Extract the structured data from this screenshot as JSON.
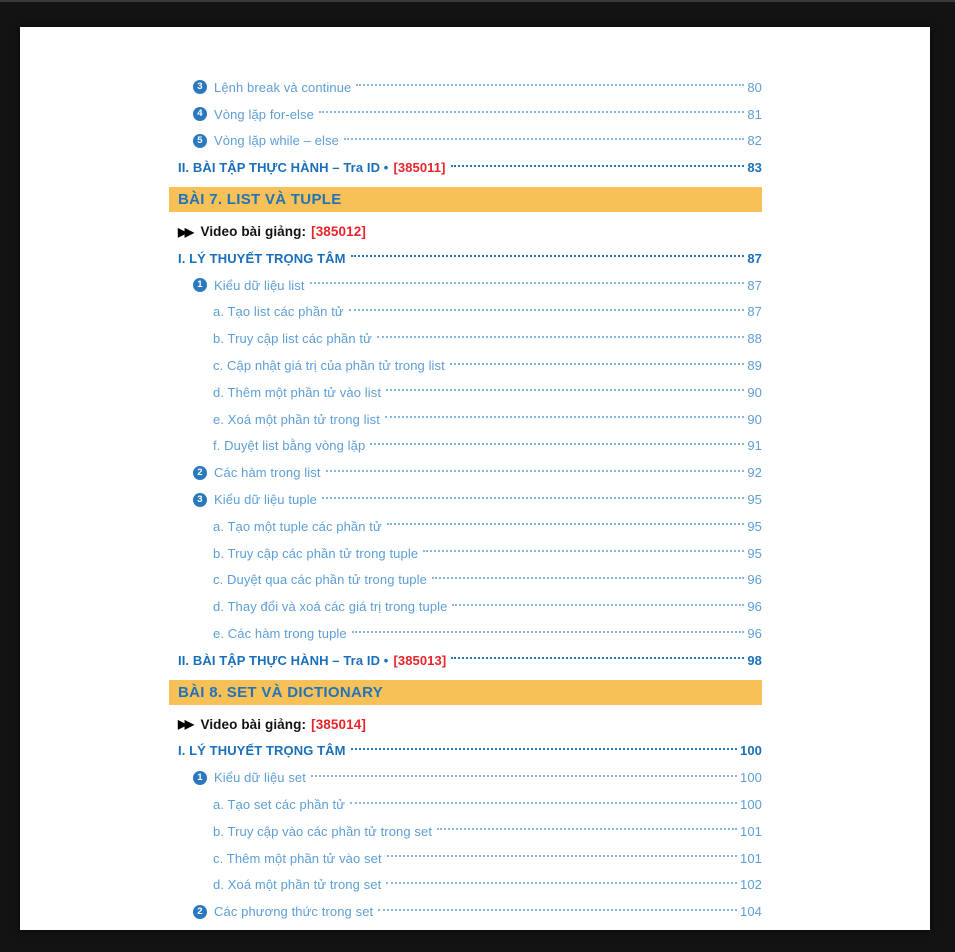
{
  "icons": {
    "fast_forward": "▶▶"
  },
  "colors": {
    "background": "#131313",
    "page": "#ffffff",
    "entry_blue": "#5d9ed6",
    "heading_blue": "#1a6fbb",
    "badge_blue": "#2a78bd",
    "bar_orange": "#f8c157",
    "bar_text_blue": "#2273b9",
    "id_red": "#e8242b",
    "video_black": "#121212"
  },
  "toc": {
    "rows": [
      {
        "type": "entry1",
        "num": "3",
        "label": "Lệnh break và continue",
        "page": "80"
      },
      {
        "type": "entry1",
        "num": "4",
        "label": "Vòng lặp for-else",
        "page": "81"
      },
      {
        "type": "entry1",
        "num": "5",
        "label": "Vòng lặp while – else",
        "page": "82"
      },
      {
        "type": "heading",
        "label": "II. BÀI TẬP THỰC HÀNH – Tra ID •",
        "id": "[385011]",
        "page": "83"
      },
      {
        "type": "bar",
        "label": "BÀI 7. LIST VÀ TUPLE"
      },
      {
        "type": "video",
        "label": "Video bài giảng:",
        "id": "[385012]"
      },
      {
        "type": "heading",
        "label": "I. LÝ THUYẾT TRỌNG TÂM",
        "page": "87"
      },
      {
        "type": "entry1",
        "num": "1",
        "label": "Kiểu dữ liệu list",
        "page": "87"
      },
      {
        "type": "entry2",
        "label": "a. Tạo list các phần tử",
        "page": "87"
      },
      {
        "type": "entry2",
        "label": "b. Truy cập list các phần tử",
        "page": "88"
      },
      {
        "type": "entry2",
        "label": "c. Cập nhật giá trị của phần tử trong list",
        "page": "89"
      },
      {
        "type": "entry2",
        "label": "d. Thêm một phần tử vào list",
        "page": "90"
      },
      {
        "type": "entry2",
        "label": "e. Xoá một phần tử trong list",
        "page": "90"
      },
      {
        "type": "entry2",
        "label": "f. Duyệt list bằng vòng lặp",
        "page": "91"
      },
      {
        "type": "entry1",
        "num": "2",
        "label": "Các hàm trong list",
        "page": "92"
      },
      {
        "type": "entry1",
        "num": "3",
        "label": "Kiểu dữ liệu tuple",
        "page": "95"
      },
      {
        "type": "entry2",
        "label": "a. Tạo một tuple các phần tử",
        "page": "95"
      },
      {
        "type": "entry2",
        "label": "b. Truy cập các phần tử trong tuple",
        "page": "95"
      },
      {
        "type": "entry2",
        "label": "c. Duyệt qua các phần tử trong tuple",
        "page": "96"
      },
      {
        "type": "entry2",
        "label": "d. Thay đổi và xoá các giá trị trong tuple",
        "page": "96"
      },
      {
        "type": "entry2",
        "label": "e. Các hàm trong tuple",
        "page": "96"
      },
      {
        "type": "heading",
        "label": "II. BÀI TẬP THỰC HÀNH – Tra ID •",
        "id": "[385013]",
        "page": "98"
      },
      {
        "type": "bar",
        "label": "BÀI 8. SET VÀ DICTIONARY"
      },
      {
        "type": "video",
        "label": "Video bài giảng:",
        "id": "[385014]"
      },
      {
        "type": "heading",
        "label": "I. LÝ THUYẾT TRỌNG TÂM",
        "page": "100"
      },
      {
        "type": "entry1",
        "num": "1",
        "label": "Kiểu dữ liệu set",
        "page": "100"
      },
      {
        "type": "entry2",
        "label": "a. Tạo set các phần tử",
        "page": "100"
      },
      {
        "type": "entry2",
        "label": "b. Truy cập vào các phần tử trong set",
        "page": "101"
      },
      {
        "type": "entry2",
        "label": "c. Thêm một phần tử vào set",
        "page": "101"
      },
      {
        "type": "entry2",
        "label": "d. Xoá một phần tử trong set",
        "page": "102"
      },
      {
        "type": "entry1",
        "num": "2",
        "label": "Các phương thức trong set",
        "page": "104"
      }
    ]
  }
}
